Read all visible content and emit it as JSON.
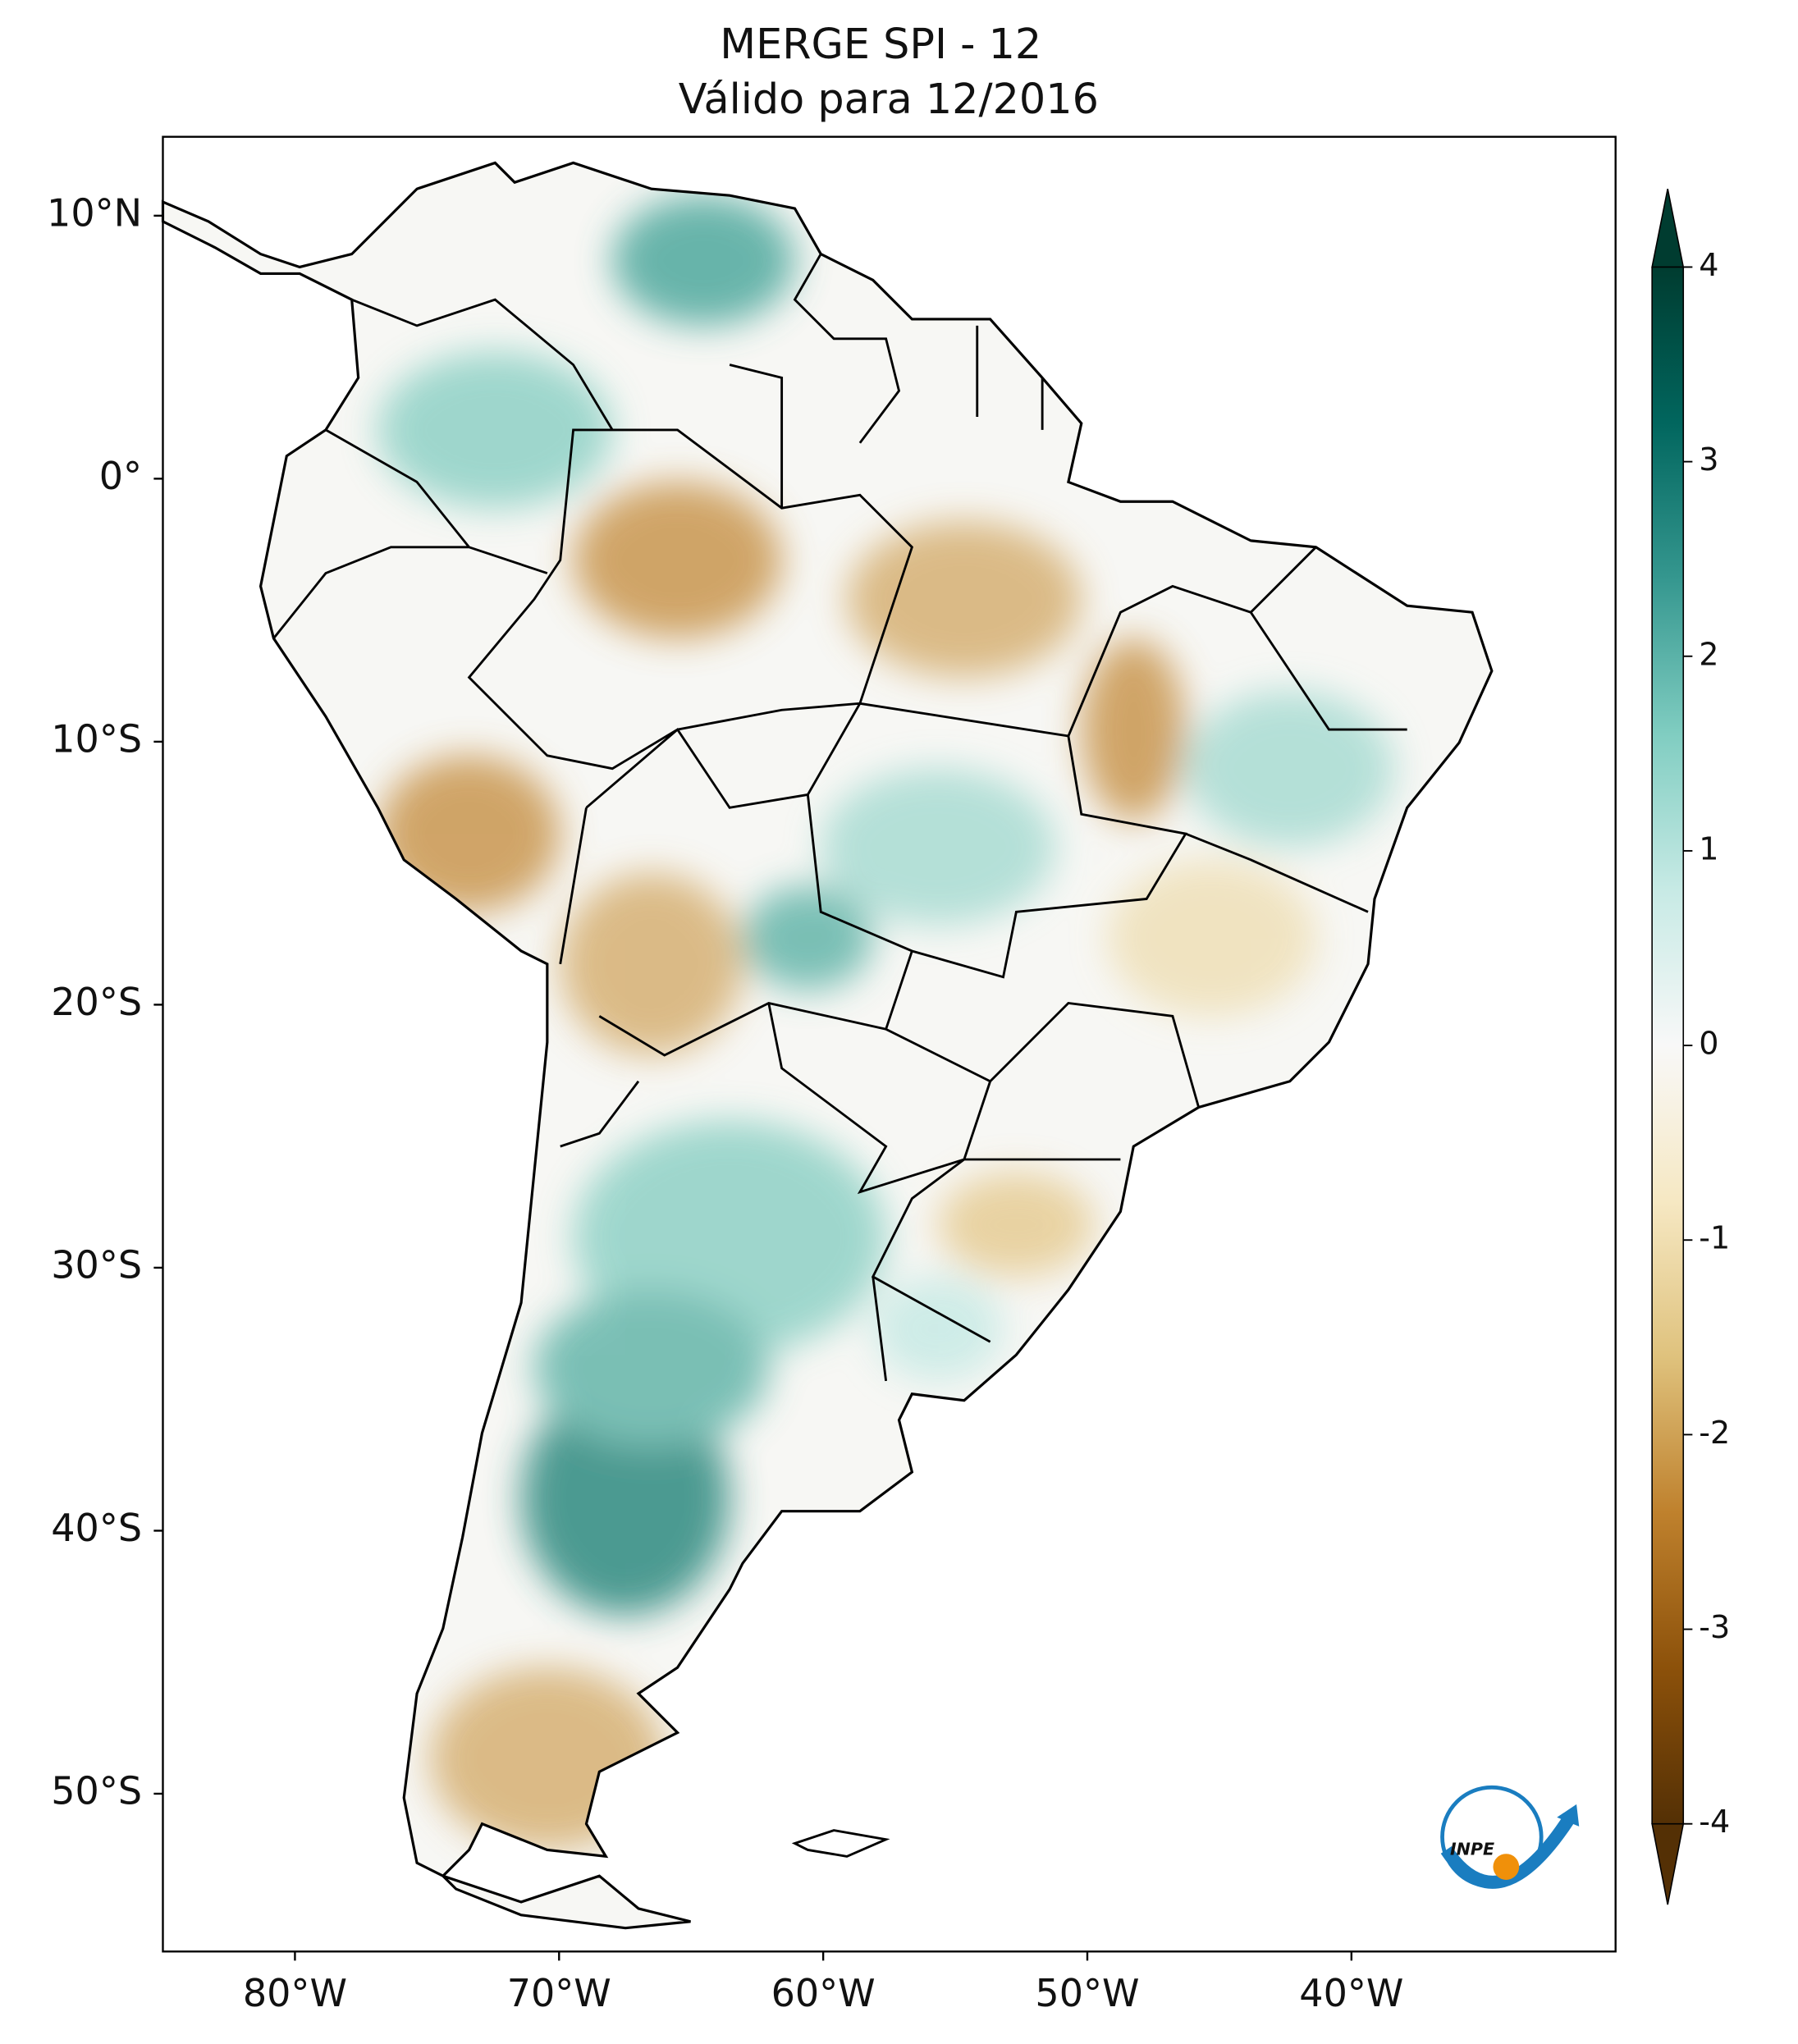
{
  "title": "MERGE   SPI - 12",
  "subtitle": "Válido para 12/2016",
  "map": {
    "xlim": [
      -85,
      -30
    ],
    "ylim": [
      -56,
      13
    ],
    "lon_ticks": [
      {
        "value": -80,
        "label": "80°W"
      },
      {
        "value": -70,
        "label": "70°W"
      },
      {
        "value": -60,
        "label": "60°W"
      },
      {
        "value": -50,
        "label": "50°W"
      },
      {
        "value": -40,
        "label": "40°W"
      }
    ],
    "lat_ticks": [
      {
        "value": 10,
        "label": "10°N"
      },
      {
        "value": 0,
        "label": "0°"
      },
      {
        "value": -10,
        "label": "10°S"
      },
      {
        "value": -20,
        "label": "20°S"
      },
      {
        "value": -30,
        "label": "30°S"
      },
      {
        "value": -40,
        "label": "40°S"
      },
      {
        "value": -50,
        "label": "50°S"
      }
    ]
  },
  "colorbar": {
    "colormap": "BrBG",
    "lim": [
      -4,
      4
    ],
    "ticks": [
      -4,
      -3,
      -2,
      -1,
      0,
      1,
      2,
      3,
      4
    ],
    "extend": "both"
  },
  "logo": "INPE"
}
